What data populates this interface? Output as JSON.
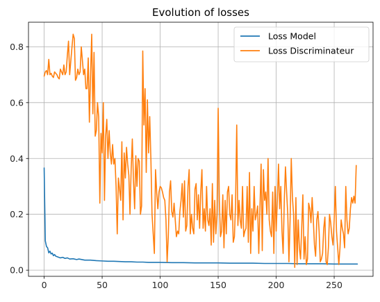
{
  "chart_data": {
    "type": "line",
    "title": "Evolution of losses",
    "xlabel": "",
    "ylabel": "",
    "xlim": [
      -13.5,
      283.5
    ],
    "ylim": [
      -0.022,
      0.888
    ],
    "xticks": [
      0,
      50,
      100,
      150,
      200,
      250
    ],
    "yticks": [
      0.0,
      0.2,
      0.4,
      0.6,
      0.8
    ],
    "xtick_labels": [
      "0",
      "50",
      "100",
      "150",
      "200",
      "250"
    ],
    "ytick_labels": [
      "0.0",
      "0.2",
      "0.4",
      "0.6",
      "0.8"
    ],
    "grid": true,
    "legend_position": "top-right",
    "series": [
      {
        "name": "Loss Model",
        "color": "#1f77b4",
        "points": [
          [
            0,
            0.366
          ],
          [
            1,
            0.105
          ],
          [
            2,
            0.085
          ],
          [
            3,
            0.08
          ],
          [
            4,
            0.062
          ],
          [
            5,
            0.068
          ],
          [
            6,
            0.058
          ],
          [
            7,
            0.061
          ],
          [
            8,
            0.052
          ],
          [
            9,
            0.056
          ],
          [
            10,
            0.05
          ],
          [
            12,
            0.047
          ],
          [
            14,
            0.044
          ],
          [
            16,
            0.046
          ],
          [
            18,
            0.042
          ],
          [
            20,
            0.044
          ],
          [
            22,
            0.04
          ],
          [
            25,
            0.041
          ],
          [
            28,
            0.038
          ],
          [
            30,
            0.04
          ],
          [
            35,
            0.036
          ],
          [
            40,
            0.036
          ],
          [
            45,
            0.034
          ],
          [
            50,
            0.033
          ],
          [
            55,
            0.032
          ],
          [
            60,
            0.032
          ],
          [
            65,
            0.031
          ],
          [
            70,
            0.03
          ],
          [
            75,
            0.03
          ],
          [
            80,
            0.029
          ],
          [
            85,
            0.029
          ],
          [
            90,
            0.028
          ],
          [
            95,
            0.028
          ],
          [
            100,
            0.028
          ],
          [
            110,
            0.027
          ],
          [
            120,
            0.027
          ],
          [
            130,
            0.026
          ],
          [
            140,
            0.026
          ],
          [
            150,
            0.026
          ],
          [
            160,
            0.025
          ],
          [
            170,
            0.025
          ],
          [
            180,
            0.025
          ],
          [
            190,
            0.024
          ],
          [
            200,
            0.024
          ],
          [
            210,
            0.024
          ],
          [
            220,
            0.023
          ],
          [
            230,
            0.023
          ],
          [
            240,
            0.023
          ],
          [
            250,
            0.022
          ],
          [
            260,
            0.022
          ],
          [
            270,
            0.022
          ]
        ]
      },
      {
        "name": "Loss Discriminateur",
        "color": "#ff7f0e",
        "points": [
          [
            0,
            0.695
          ],
          [
            1,
            0.71
          ],
          [
            2,
            0.715
          ],
          [
            3,
            0.7
          ],
          [
            4,
            0.755
          ],
          [
            5,
            0.7
          ],
          [
            6,
            0.705
          ],
          [
            7,
            0.695
          ],
          [
            8,
            0.69
          ],
          [
            9,
            0.71
          ],
          [
            10,
            0.705
          ],
          [
            11,
            0.7
          ],
          [
            12,
            0.69
          ],
          [
            13,
            0.685
          ],
          [
            14,
            0.72
          ],
          [
            15,
            0.71
          ],
          [
            16,
            0.7
          ],
          [
            17,
            0.735
          ],
          [
            18,
            0.7
          ],
          [
            19,
            0.71
          ],
          [
            20,
            0.77
          ],
          [
            21,
            0.82
          ],
          [
            22,
            0.7
          ],
          [
            23,
            0.75
          ],
          [
            24,
            0.8
          ],
          [
            25,
            0.845
          ],
          [
            26,
            0.83
          ],
          [
            27,
            0.68
          ],
          [
            28,
            0.69
          ],
          [
            29,
            0.72
          ],
          [
            30,
            0.7
          ],
          [
            31,
            0.71
          ],
          [
            32,
            0.8
          ],
          [
            33,
            0.75
          ],
          [
            34,
            0.7
          ],
          [
            35,
            0.72
          ],
          [
            36,
            0.65
          ],
          [
            37,
            0.65
          ],
          [
            38,
            0.76
          ],
          [
            39,
            0.53
          ],
          [
            40,
            0.7
          ],
          [
            41,
            0.845
          ],
          [
            42,
            0.56
          ],
          [
            43,
            0.78
          ],
          [
            44,
            0.48
          ],
          [
            45,
            0.5
          ],
          [
            46,
            0.6
          ],
          [
            47,
            0.55
          ],
          [
            48,
            0.24
          ],
          [
            49,
            0.49
          ],
          [
            50,
            0.42
          ],
          [
            51,
            0.6
          ],
          [
            52,
            0.25
          ],
          [
            53,
            0.48
          ],
          [
            54,
            0.54
          ],
          [
            55,
            0.4
          ],
          [
            56,
            0.5
          ],
          [
            57,
            0.42
          ],
          [
            58,
            0.38
          ],
          [
            59,
            0.45
          ],
          [
            60,
            0.38
          ],
          [
            61,
            0.4
          ],
          [
            62,
            0.3
          ],
          [
            63,
            0.13
          ],
          [
            64,
            0.33
          ],
          [
            65,
            0.29
          ],
          [
            66,
            0.25
          ],
          [
            67,
            0.46
          ],
          [
            68,
            0.18
          ],
          [
            69,
            0.42
          ],
          [
            70,
            0.33
          ],
          [
            71,
            0.44
          ],
          [
            72,
            0.38
          ],
          [
            73,
            0.34
          ],
          [
            74,
            0.2
          ],
          [
            75,
            0.36
          ],
          [
            76,
            0.47
          ],
          [
            77,
            0.32
          ],
          [
            78,
            0.22
          ],
          [
            79,
            0.41
          ],
          [
            80,
            0.3
          ],
          [
            81,
            0.4
          ],
          [
            82,
            0.39
          ],
          [
            83,
            0.2
          ],
          [
            84,
            0.23
          ],
          [
            85,
            0.785
          ],
          [
            86,
            0.52
          ],
          [
            87,
            0.65
          ],
          [
            88,
            0.35
          ],
          [
            89,
            0.61
          ],
          [
            90,
            0.42
          ],
          [
            91,
            0.55
          ],
          [
            92,
            0.4
          ],
          [
            93,
            0.2
          ],
          [
            94,
            0.13
          ],
          [
            95,
            0.06
          ],
          [
            96,
            0.36
          ],
          [
            97,
            0.28
          ],
          [
            98,
            0.22
          ],
          [
            99,
            0.28
          ],
          [
            100,
            0.3
          ],
          [
            101,
            0.295
          ],
          [
            102,
            0.28
          ],
          [
            103,
            0.26
          ],
          [
            104,
            0.25
          ],
          [
            105,
            0.18
          ],
          [
            106,
            0.03
          ],
          [
            107,
            0.12
          ],
          [
            108,
            0.28
          ],
          [
            109,
            0.32
          ],
          [
            110,
            0.21
          ],
          [
            111,
            0.19
          ],
          [
            112,
            0.24
          ],
          [
            113,
            0.18
          ],
          [
            114,
            0.12
          ],
          [
            115,
            0.14
          ],
          [
            116,
            0.13
          ],
          [
            117,
            0.21
          ],
          [
            118,
            0.25
          ],
          [
            119,
            0.31
          ],
          [
            120,
            0.19
          ],
          [
            121,
            0.32
          ],
          [
            122,
            0.14
          ],
          [
            123,
            0.16
          ],
          [
            124,
            0.3
          ],
          [
            125,
            0.36
          ],
          [
            126,
            0.13
          ],
          [
            127,
            0.2
          ],
          [
            128,
            0.15
          ],
          [
            129,
            0.13
          ],
          [
            130,
            0.29
          ],
          [
            131,
            0.31
          ],
          [
            132,
            0.18
          ],
          [
            133,
            0.27
          ],
          [
            134,
            0.15
          ],
          [
            135,
            0.28
          ],
          [
            136,
            0.36
          ],
          [
            137,
            0.15
          ],
          [
            138,
            0.22
          ],
          [
            139,
            0.14
          ],
          [
            140,
            0.3
          ],
          [
            141,
            0.18
          ],
          [
            142,
            0.16
          ],
          [
            143,
            0.22
          ],
          [
            144,
            0.09
          ],
          [
            145,
            0.31
          ],
          [
            146,
            0.1
          ],
          [
            147,
            0.25
          ],
          [
            148,
            0.13
          ],
          [
            149,
            0.2
          ],
          [
            150,
            0.58
          ],
          [
            151,
            0.25
          ],
          [
            152,
            0.12
          ],
          [
            153,
            0.14
          ],
          [
            154,
            0.27
          ],
          [
            155,
            0.08
          ],
          [
            156,
            0.25
          ],
          [
            157,
            0.13
          ],
          [
            158,
            0.28
          ],
          [
            159,
            0.3
          ],
          [
            160,
            0.2
          ],
          [
            161,
            0.18
          ],
          [
            162,
            0.27
          ],
          [
            163,
            0.1
          ],
          [
            164,
            0.12
          ],
          [
            165,
            0.24
          ],
          [
            166,
            0.52
          ],
          [
            167,
            0.16
          ],
          [
            168,
            0.25
          ],
          [
            169,
            0.18
          ],
          [
            170,
            0.15
          ],
          [
            171,
            0.3
          ],
          [
            172,
            0.12
          ],
          [
            173,
            0.14
          ],
          [
            174,
            0.15
          ],
          [
            175,
            0.3
          ],
          [
            176,
            0.1
          ],
          [
            177,
            0.35
          ],
          [
            178,
            0.06
          ],
          [
            179,
            0.22
          ],
          [
            180,
            0.14
          ],
          [
            181,
            0.3
          ],
          [
            182,
            0.18
          ],
          [
            183,
            0.2
          ],
          [
            184,
            0.23
          ],
          [
            185,
            0.06
          ],
          [
            186,
            0.22
          ],
          [
            187,
            0.38
          ],
          [
            188,
            0.07
          ],
          [
            189,
            0.36
          ],
          [
            190,
            0.25
          ],
          [
            191,
            0.28
          ],
          [
            192,
            0.2
          ],
          [
            193,
            0.4
          ],
          [
            194,
            0.18
          ],
          [
            195,
            0.14
          ],
          [
            196,
            0.12
          ],
          [
            197,
            0.28
          ],
          [
            198,
            0.06
          ],
          [
            199,
            0.3
          ],
          [
            200,
            0.14
          ],
          [
            201,
            0.25
          ],
          [
            202,
            0.38
          ],
          [
            203,
            0.22
          ],
          [
            204,
            0.3
          ],
          [
            205,
            0.14
          ],
          [
            206,
            0.06
          ],
          [
            207,
            0.25
          ],
          [
            208,
            0.37
          ],
          [
            209,
            0.28
          ],
          [
            210,
            0.2
          ],
          [
            211,
            0.03
          ],
          [
            212,
            0.18
          ],
          [
            213,
            0.4
          ],
          [
            214,
            0.26
          ],
          [
            215,
            0.2
          ],
          [
            216,
            0.01
          ],
          [
            217,
            0.26
          ],
          [
            218,
            0.02
          ],
          [
            219,
            0.18
          ],
          [
            220,
            0.08
          ],
          [
            221,
            0.04
          ],
          [
            222,
            0.15
          ],
          [
            223,
            0.27
          ],
          [
            224,
            0.04
          ],
          [
            225,
            0.12
          ],
          [
            226,
            0.02
          ],
          [
            227,
            0.04
          ],
          [
            228,
            0.24
          ],
          [
            229,
            0.22
          ],
          [
            230,
            0.17
          ],
          [
            231,
            0.26
          ],
          [
            232,
            0.18
          ],
          [
            233,
            0.09
          ],
          [
            234,
            0.05
          ],
          [
            235,
            0.18
          ],
          [
            236,
            0.21
          ],
          [
            237,
            0.14
          ],
          [
            238,
            0.03
          ],
          [
            239,
            0.04
          ],
          [
            240,
            0.06
          ],
          [
            241,
            0.15
          ],
          [
            242,
            0.19
          ],
          [
            243,
            0.03
          ],
          [
            244,
            0.02
          ],
          [
            245,
            0.08
          ],
          [
            246,
            0.2
          ],
          [
            247,
            0.17
          ],
          [
            248,
            0.12
          ],
          [
            249,
            0.09
          ],
          [
            250,
            0.18
          ],
          [
            251,
            0.3
          ],
          [
            252,
            0.14
          ],
          [
            253,
            0.08
          ],
          [
            254,
            0.02
          ],
          [
            255,
            0.08
          ],
          [
            256,
            0.18
          ],
          [
            257,
            0.15
          ],
          [
            258,
            0.13
          ],
          [
            259,
            0.08
          ],
          [
            260,
            0.3
          ],
          [
            261,
            0.18
          ],
          [
            262,
            0.13
          ],
          [
            263,
            0.15
          ],
          [
            264,
            0.22
          ],
          [
            265,
            0.26
          ],
          [
            266,
            0.24
          ],
          [
            267,
            0.265
          ],
          [
            268,
            0.24
          ],
          [
            269,
            0.375
          ]
        ]
      }
    ]
  }
}
